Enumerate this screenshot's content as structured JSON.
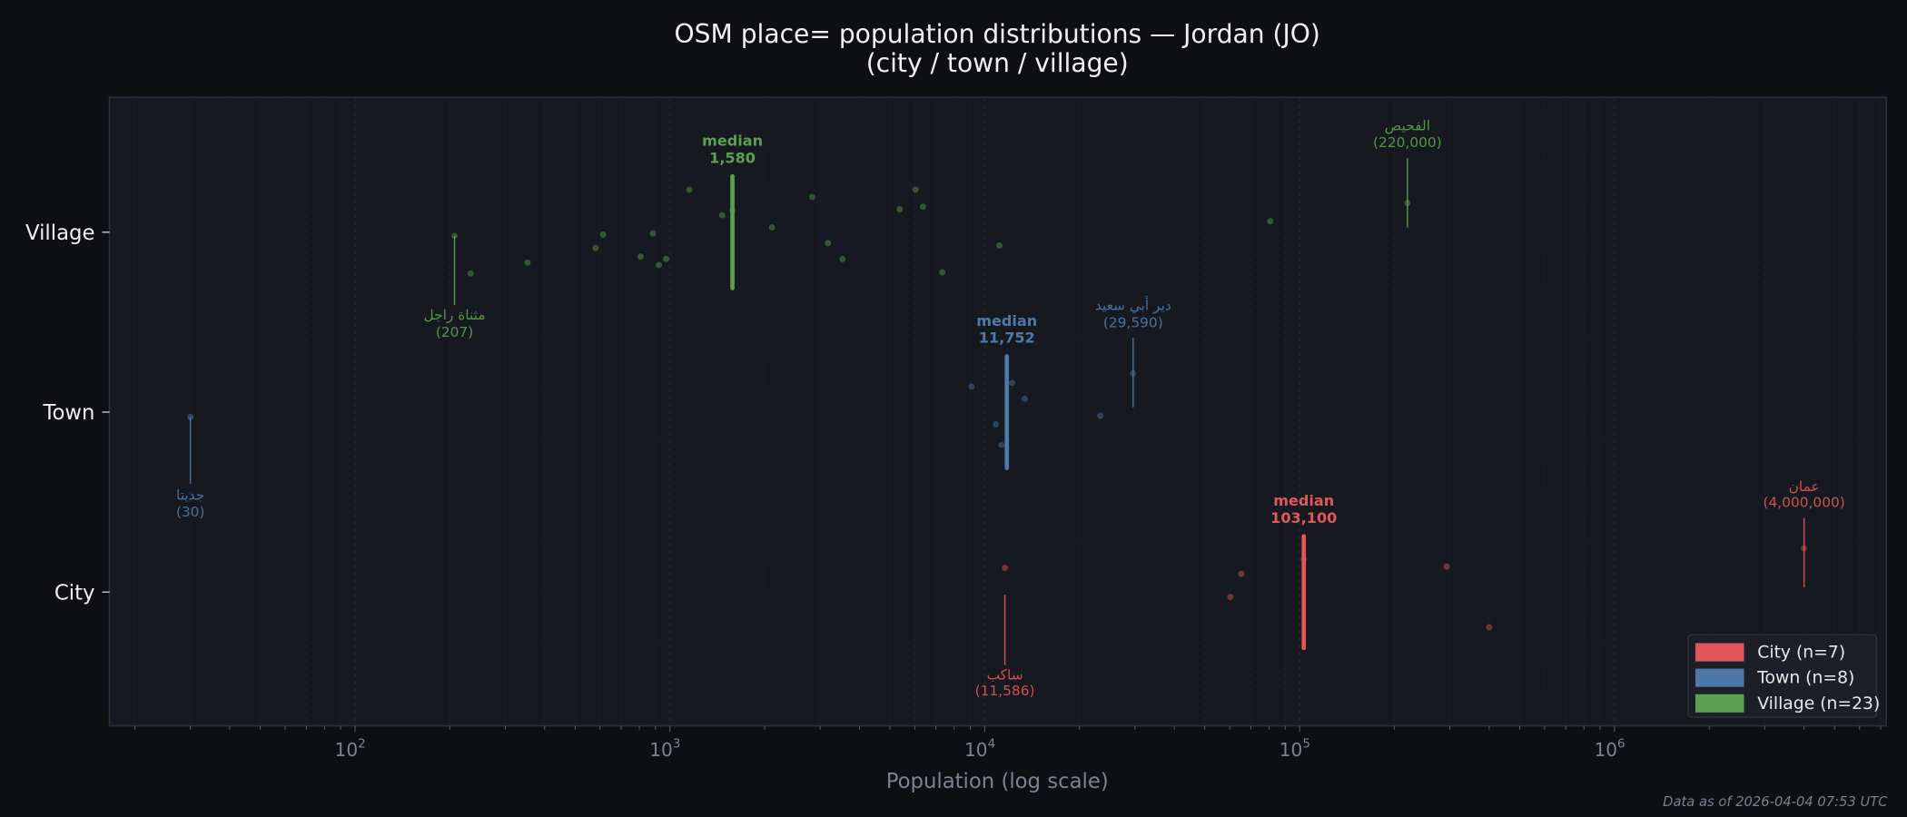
{
  "chart_data": {
    "type": "scatter",
    "title": "OSM place= population distributions — Jordan (JO)",
    "subtitle": "(city / town / village)",
    "xlabel": "Population (log scale)",
    "xscale": "log",
    "xlim": [
      16.6,
      7300000
    ],
    "x_ticks": [
      {
        "base": "10",
        "exp": "2"
      },
      {
        "base": "10",
        "exp": "3"
      },
      {
        "base": "10",
        "exp": "4"
      },
      {
        "base": "10",
        "exp": "5"
      },
      {
        "base": "10",
        "exp": "6"
      }
    ],
    "categories": [
      "Village",
      "Town",
      "City"
    ],
    "grid": "vertical dashed (major and minor)",
    "legend_placement": "bottom-right",
    "series": [
      {
        "name": "City",
        "legend": "City  (n=7)",
        "color": "#e05759",
        "values": [
          11586,
          60300,
          65300,
          103100,
          293000,
          400000,
          4000000
        ],
        "median": 103100,
        "median_label": "median",
        "median_value": "103,100",
        "annotations": [
          {
            "name": "ساكب",
            "value_label": "(11,586)",
            "value": 11586,
            "side": "below"
          },
          {
            "name": "عمان",
            "value_label": "(4,000,000)",
            "value": 4000000,
            "side": "above"
          }
        ]
      },
      {
        "name": "Town",
        "legend": "Town  (n=8)",
        "color": "#4e79a7",
        "values": [
          30,
          9080,
          10840,
          11300,
          12204,
          13400,
          23300,
          29590
        ],
        "median": 11752,
        "median_label": "median",
        "median_value": "11,752",
        "annotations": [
          {
            "name": "جديتا",
            "value_label": "(30)",
            "value": 30,
            "side": "below"
          },
          {
            "name": "دير أبي سعيد",
            "value_label": "(29,590)",
            "value": 29590,
            "side": "above"
          }
        ]
      },
      {
        "name": "Village",
        "legend": "Village  (n=23)",
        "color": "#59a14f",
        "values": [
          207,
          233,
          353,
          581,
          614,
          807,
          883,
          923,
          973,
          1153,
          1466,
          1580,
          2110,
          2830,
          3177,
          3533,
          5370,
          6030,
          6360,
          7330,
          11130,
          80700,
          220000
        ],
        "median": 1580,
        "median_label": "median",
        "median_value": "1,580",
        "annotations": [
          {
            "name": "مثناة راجل",
            "value_label": "(207)",
            "value": 207,
            "side": "below"
          },
          {
            "name": "الفحيص",
            "value_label": "(220,000)",
            "value": 220000,
            "side": "above"
          }
        ]
      }
    ]
  },
  "footer": "Data as of 2026-04-04 07:53 UTC"
}
